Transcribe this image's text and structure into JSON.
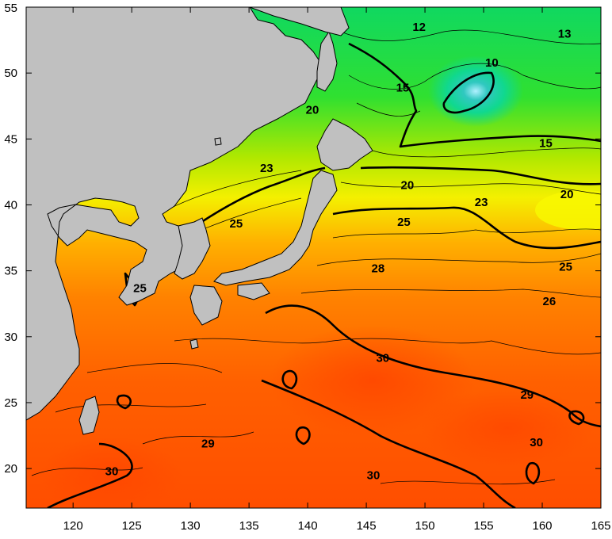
{
  "map": {
    "lon_range": [
      116,
      165
    ],
    "lat_range": [
      17,
      55
    ],
    "x_ticks": [
      {
        "value": 120,
        "label": "120"
      },
      {
        "value": 125,
        "label": "125"
      },
      {
        "value": 130,
        "label": "130"
      },
      {
        "value": 135,
        "label": "135"
      },
      {
        "value": 140,
        "label": "140"
      },
      {
        "value": 145,
        "label": "145"
      },
      {
        "value": 150,
        "label": "150"
      },
      {
        "value": 155,
        "label": "155"
      },
      {
        "value": 160,
        "label": "160"
      },
      {
        "value": 165,
        "label": "165"
      }
    ],
    "y_ticks": [
      {
        "value": 55,
        "label": "55"
      },
      {
        "value": 50,
        "label": "50"
      },
      {
        "value": 45,
        "label": "45"
      },
      {
        "value": 40,
        "label": "40"
      },
      {
        "value": 35,
        "label": "35"
      },
      {
        "value": 30,
        "label": "30"
      },
      {
        "value": 25,
        "label": "25"
      },
      {
        "value": 20,
        "label": "20"
      }
    ],
    "contour_labels": [
      {
        "text": "12",
        "lon": 149.5,
        "lat": 53.5
      },
      {
        "text": "13",
        "lon": 161.9,
        "lat": 53.0
      },
      {
        "text": "10",
        "lon": 155.7,
        "lat": 50.8
      },
      {
        "text": "15",
        "lon": 148.1,
        "lat": 48.9
      },
      {
        "text": "20",
        "lon": 140.4,
        "lat": 47.2
      },
      {
        "text": "15",
        "lon": 160.3,
        "lat": 44.7
      },
      {
        "text": "23",
        "lon": 136.5,
        "lat": 42.8
      },
      {
        "text": "20",
        "lon": 148.5,
        "lat": 41.5
      },
      {
        "text": "20",
        "lon": 162.1,
        "lat": 40.8
      },
      {
        "text": "23",
        "lon": 154.8,
        "lat": 40.2
      },
      {
        "text": "25",
        "lon": 133.9,
        "lat": 38.6
      },
      {
        "text": "25",
        "lon": 148.2,
        "lat": 38.7
      },
      {
        "text": "28",
        "lon": 146.0,
        "lat": 35.2
      },
      {
        "text": "25",
        "lon": 162.0,
        "lat": 35.3
      },
      {
        "text": "25",
        "lon": 125.7,
        "lat": 33.7
      },
      {
        "text": "26",
        "lon": 160.6,
        "lat": 32.7
      },
      {
        "text": "30",
        "lon": 146.4,
        "lat": 28.4
      },
      {
        "text": "29",
        "lon": 158.7,
        "lat": 25.6
      },
      {
        "text": "29",
        "lon": 131.5,
        "lat": 21.9
      },
      {
        "text": "30",
        "lon": 159.5,
        "lat": 22.0
      },
      {
        "text": "30",
        "lon": 123.3,
        "lat": 19.8
      },
      {
        "text": "30",
        "lon": 145.6,
        "lat": 19.5
      }
    ],
    "colors": {
      "land": "#c0c0c0",
      "cold": "#00c8a0",
      "green": "#20d040",
      "yellow": "#f0f000",
      "orange": "#ff8c00",
      "warm": "#ff4a00",
      "contour": "#000000"
    }
  }
}
